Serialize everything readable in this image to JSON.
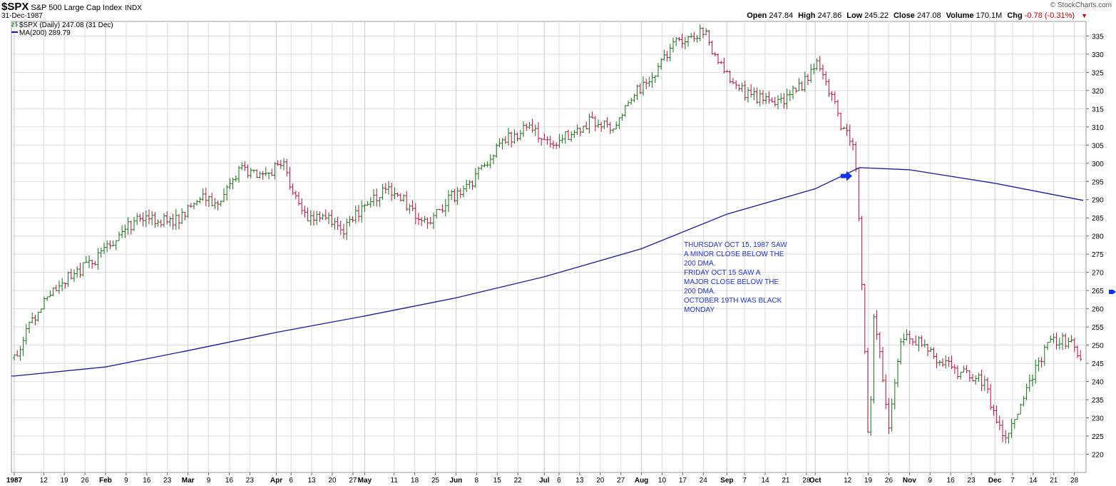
{
  "header": {
    "symbol": "$SPX",
    "name": "S&P 500 Large Cap Index",
    "exchange": "INDX",
    "date": "31-Dec-1987",
    "copyright": "© StockCharts.com",
    "ohlc": [
      {
        "label": "Open",
        "value": "247.84"
      },
      {
        "label": "High",
        "value": "247.86"
      },
      {
        "label": "Low",
        "value": "245.22"
      },
      {
        "label": "Close",
        "value": "247.08"
      },
      {
        "label": "Volume",
        "value": "170.1M"
      },
      {
        "label": "Chg",
        "value": "-0.78 (-0.31%)"
      }
    ]
  },
  "legend": {
    "price": "$SPX (Daily) 247.08 (31 Dec)",
    "ma": "MA(200) 289.79"
  },
  "annotation": "THURSDAY OCT 15, 1987 SAW\nA MINOR CLOSE BELOW THE\n200 DMA.\nFRIDAY OCT 15 SAW A\nMAJOR CLOSE BELOW THE\n200 DMA.\nOCTOBER 19TH WAS BLACK\nMONDAY",
  "colors": {
    "up": "#1a6e1a",
    "down": "#b0103a",
    "ma": "#1a1a8c",
    "arrow": "#1133ee",
    "grid": "#dddddd"
  },
  "chart_data": {
    "type": "line",
    "ylim": [
      215,
      339
    ],
    "y_ticks": [
      220,
      225,
      230,
      235,
      240,
      245,
      250,
      255,
      260,
      265,
      270,
      275,
      280,
      285,
      290,
      295,
      300,
      305,
      310,
      315,
      320,
      325,
      330,
      335
    ],
    "x_ticks": [
      {
        "label": "1987",
        "date": "1987-01-02"
      },
      {
        "label": "12",
        "date": "1987-01-12"
      },
      {
        "label": "19",
        "date": "1987-01-19"
      },
      {
        "label": "26",
        "date": "1987-01-26"
      },
      {
        "label": "Feb",
        "date": "1987-02-02"
      },
      {
        "label": "9",
        "date": "1987-02-09"
      },
      {
        "label": "16",
        "date": "1987-02-16"
      },
      {
        "label": "23",
        "date": "1987-02-23"
      },
      {
        "label": "Mar",
        "date": "1987-03-02"
      },
      {
        "label": "9",
        "date": "1987-03-09"
      },
      {
        "label": "16",
        "date": "1987-03-16"
      },
      {
        "label": "23",
        "date": "1987-03-23"
      },
      {
        "label": "Apr",
        "date": "1987-04-01"
      },
      {
        "label": "6",
        "date": "1987-04-06"
      },
      {
        "label": "13",
        "date": "1987-04-13"
      },
      {
        "label": "20",
        "date": "1987-04-20"
      },
      {
        "label": "27",
        "date": "1987-04-27"
      },
      {
        "label": "May",
        "date": "1987-05-01"
      },
      {
        "label": "11",
        "date": "1987-05-11"
      },
      {
        "label": "18",
        "date": "1987-05-18"
      },
      {
        "label": "25",
        "date": "1987-05-25"
      },
      {
        "label": "Jun",
        "date": "1987-06-01"
      },
      {
        "label": "8",
        "date": "1987-06-08"
      },
      {
        "label": "15",
        "date": "1987-06-15"
      },
      {
        "label": "22",
        "date": "1987-06-22"
      },
      {
        "label": "Jul",
        "date": "1987-07-01"
      },
      {
        "label": "6",
        "date": "1987-07-06"
      },
      {
        "label": "13",
        "date": "1987-07-13"
      },
      {
        "label": "20",
        "date": "1987-07-20"
      },
      {
        "label": "27",
        "date": "1987-07-27"
      },
      {
        "label": "Aug",
        "date": "1987-08-03"
      },
      {
        "label": "10",
        "date": "1987-08-10"
      },
      {
        "label": "17",
        "date": "1987-08-17"
      },
      {
        "label": "24",
        "date": "1987-08-24"
      },
      {
        "label": "Sep",
        "date": "1987-09-01"
      },
      {
        "label": "7",
        "date": "1987-09-07"
      },
      {
        "label": "14",
        "date": "1987-09-14"
      },
      {
        "label": "21",
        "date": "1987-09-21"
      },
      {
        "label": "28",
        "date": "1987-09-28"
      },
      {
        "label": "Oct",
        "date": "1987-10-01"
      },
      {
        "label": "12",
        "date": "1987-10-12"
      },
      {
        "label": "19",
        "date": "1987-10-19"
      },
      {
        "label": "26",
        "date": "1987-10-26"
      },
      {
        "label": "Nov",
        "date": "1987-11-02"
      },
      {
        "label": "9",
        "date": "1987-11-09"
      },
      {
        "label": "16",
        "date": "1987-11-16"
      },
      {
        "label": "23",
        "date": "1987-11-23"
      },
      {
        "label": "Dec",
        "date": "1987-12-01"
      },
      {
        "label": "7",
        "date": "1987-12-07"
      },
      {
        "label": "14",
        "date": "1987-12-14"
      },
      {
        "label": "21",
        "date": "1987-12-21"
      },
      {
        "label": "28",
        "date": "1987-12-28"
      }
    ],
    "bold_x_ticks": [
      "1987",
      "Feb",
      "Mar",
      "Apr",
      "May",
      "Jun",
      "Jul",
      "Aug",
      "Sep",
      "Oct",
      "Nov",
      "Dec"
    ],
    "series": [
      {
        "name": "$SPX (Daily)",
        "style": "ohlc_bars",
        "x": [
          "1987-01-02",
          "1987-01-09",
          "1987-01-16",
          "1987-01-23",
          "1987-01-30",
          "1987-02-06",
          "1987-02-13",
          "1987-02-20",
          "1987-02-27",
          "1987-03-06",
          "1987-03-13",
          "1987-03-20",
          "1987-03-27",
          "1987-04-03",
          "1987-04-10",
          "1987-04-17",
          "1987-04-24",
          "1987-05-01",
          "1987-05-08",
          "1987-05-15",
          "1987-05-22",
          "1987-05-29",
          "1987-06-05",
          "1987-06-12",
          "1987-06-19",
          "1987-06-26",
          "1987-07-03",
          "1987-07-10",
          "1987-07-17",
          "1987-07-24",
          "1987-07-31",
          "1987-08-07",
          "1987-08-14",
          "1987-08-21",
          "1987-08-25",
          "1987-08-28",
          "1987-09-04",
          "1987-09-11",
          "1987-09-18",
          "1987-09-25",
          "1987-10-02",
          "1987-10-07",
          "1987-10-09",
          "1987-10-14",
          "1987-10-15",
          "1987-10-16",
          "1987-10-19",
          "1987-10-20",
          "1987-10-21",
          "1987-10-23",
          "1987-10-26",
          "1987-10-30",
          "1987-11-06",
          "1987-11-13",
          "1987-11-20",
          "1987-11-27",
          "1987-12-04",
          "1987-12-11",
          "1987-12-18",
          "1987-12-24",
          "1987-12-31"
        ],
        "values": [
          246.5,
          258,
          266.3,
          270,
          274,
          279,
          285.5,
          284.5,
          284.2,
          290.5,
          289.5,
          298.2,
          296,
          300.5,
          285.5,
          285,
          282,
          288,
          293.5,
          289,
          282.7,
          290,
          293,
          301,
          307,
          310,
          305.5,
          308,
          312,
          309,
          318.7,
          324,
          333,
          335,
          336.8,
          329,
          321,
          318,
          316,
          320,
          328,
          318,
          311.1,
          305,
          298,
          282.7,
          224.8,
          236.8,
          258.4,
          248.2,
          227.7,
          251.8,
          250.4,
          245.6,
          242,
          240.3,
          223.9,
          235.3,
          249.2,
          252,
          247.08
        ]
      },
      {
        "name": "MA(200)",
        "style": "line",
        "x": [
          "1987-01-02",
          "1987-02-02",
          "1987-03-02",
          "1987-04-01",
          "1987-05-01",
          "1987-06-01",
          "1987-07-01",
          "1987-08-03",
          "1987-09-01",
          "1987-10-01",
          "1987-10-16",
          "1987-11-02",
          "1987-12-01",
          "1987-12-31"
        ],
        "values": [
          241.5,
          244,
          248.5,
          253.5,
          258,
          263,
          268.8,
          276.5,
          286,
          293,
          298.8,
          298.2,
          294.5,
          289.79
        ]
      }
    ],
    "marker": {
      "date": "1987-10-15",
      "value": 296.5,
      "shape": "arrow-right"
    }
  }
}
